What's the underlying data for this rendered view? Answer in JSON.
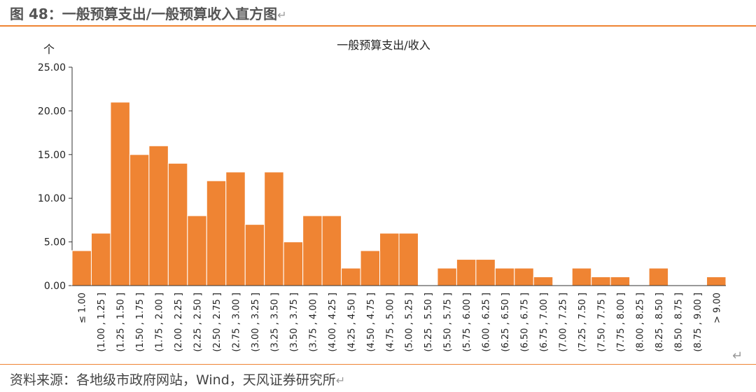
{
  "figure_title": "图 48：一般预算支出/一般预算收入直方图",
  "source_text": "资料来源：各地级市政府网站，Wind，天风证券研究所",
  "return_mark": "↵",
  "colors": {
    "bar": "#ef8433",
    "accent": "#ef8433",
    "axis": "#333333"
  },
  "chart_data": {
    "type": "bar",
    "title": "一般预算支出/收入",
    "ylabel": "个",
    "xlabel": "",
    "ylim": [
      0,
      25
    ],
    "yticks": [
      "0.00",
      "5.00",
      "10.00",
      "15.00",
      "20.00",
      "25.00"
    ],
    "grid": false,
    "legend": "none",
    "categories": [
      "≤ 1.00",
      "(1.00 , 1.25 ]",
      "(1.25 , 1.50 ]",
      "(1.50 , 1.75 ]",
      "(1.75 , 2.00 ]",
      "(2.00 , 2.25 ]",
      "(2.25 , 2.50 ]",
      "(2.50 , 2.75 ]",
      "(2.75 , 3.00 ]",
      "(3.00 , 3.25 ]",
      "(3.25 , 3.50 ]",
      "(3.50 , 3.75 ]",
      "(3.75 , 4.00 ]",
      "(4.00 , 4.25 ]",
      "(4.25 , 4.50 ]",
      "(4.50 , 4.75 ]",
      "(4.75 , 5.00 ]",
      "(5.00 , 5.25 ]",
      "(5.25 , 5.50 ]",
      "(5.50 , 5.75 ]",
      "(5.75 , 6.00 ]",
      "(6.00 , 6.25 ]",
      "(6.25 , 6.50 ]",
      "(6.50 , 6.75 ]",
      "(6.75 , 7.00 ]",
      "(7.00 , 7.25 ]",
      "(7.25 , 7.50 ]",
      "(7.50 , 7.75 ]",
      "(7.75 , 8.00 ]",
      "(8.00 , 8.25 ]",
      "(8.25 , 8.50 ]",
      "(8.50 , 8.75 ]",
      "(8.75 , 9.00 ]",
      "> 9.00"
    ],
    "values": [
      4,
      6,
      21,
      15,
      16,
      14,
      8,
      12,
      13,
      7,
      13,
      5,
      8,
      8,
      2,
      4,
      6,
      6,
      0,
      2,
      3,
      3,
      2,
      2,
      1,
      0,
      2,
      1,
      1,
      0,
      2,
      0,
      0,
      1
    ]
  }
}
